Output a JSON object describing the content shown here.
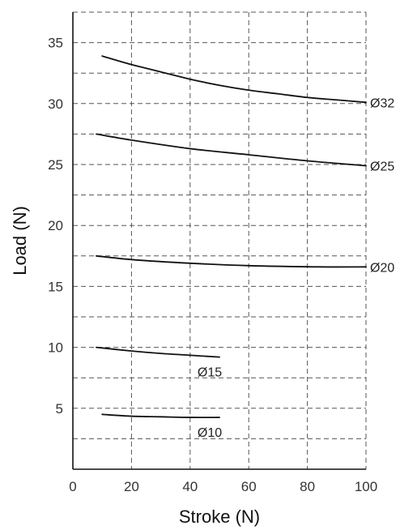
{
  "chart_data": {
    "type": "line",
    "title": "",
    "xlabel": "Stroke (N)",
    "ylabel": "Load (N)",
    "xlim": [
      0,
      100
    ],
    "ylim": [
      0,
      37.5
    ],
    "x_tick_labels": [
      "0",
      "20",
      "40",
      "60",
      "80",
      "100"
    ],
    "y_tick_labels": [
      "5",
      "10",
      "15",
      "20",
      "25",
      "30",
      "35"
    ],
    "grid": true,
    "legend": "none",
    "series": [
      {
        "name": "Ø32",
        "x": [
          10,
          20,
          30,
          40,
          50,
          60,
          70,
          80,
          90,
          100
        ],
        "y": [
          33.9,
          33.2,
          32.6,
          32.0,
          31.5,
          31.1,
          30.8,
          30.5,
          30.3,
          30.1
        ]
      },
      {
        "name": "Ø25",
        "x": [
          8,
          20,
          40,
          60,
          80,
          100
        ],
        "y": [
          27.5,
          27.0,
          26.3,
          25.8,
          25.3,
          24.9
        ]
      },
      {
        "name": "Ø20",
        "x": [
          8,
          20,
          40,
          60,
          84,
          100
        ],
        "y": [
          17.5,
          17.2,
          16.9,
          16.7,
          16.6,
          16.6
        ]
      },
      {
        "name": "Ø15",
        "x": [
          8,
          20,
          30,
          40,
          50
        ],
        "y": [
          10.0,
          9.7,
          9.5,
          9.35,
          9.2
        ]
      },
      {
        "name": "Ø10",
        "x": [
          10,
          20,
          30,
          40,
          50
        ],
        "y": [
          4.5,
          4.35,
          4.3,
          4.25,
          4.25
        ]
      }
    ]
  }
}
